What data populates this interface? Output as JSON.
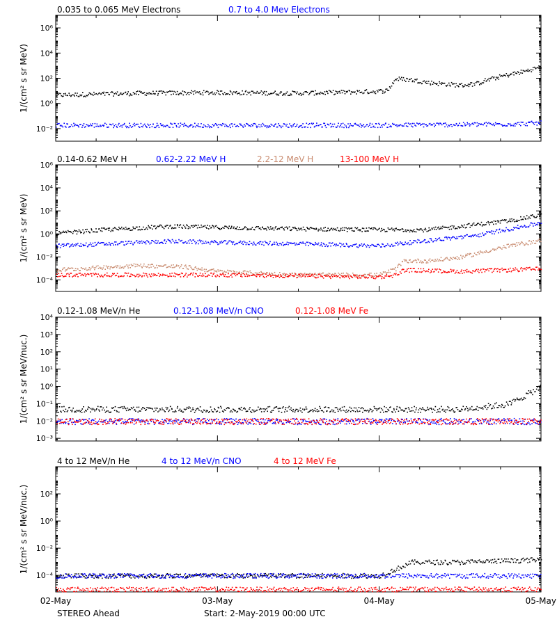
{
  "colors": {
    "black": "#000000",
    "blue": "#0000ff",
    "tan": "#c88a6e",
    "red": "#ff0000"
  },
  "footer": {
    "spacecraft": "STEREO Ahead",
    "start": "Start:  2-May-2019 00:00 UTC"
  },
  "x_axis": {
    "tick_labels": [
      "02-May",
      "03-May",
      "04-May",
      "05-May"
    ],
    "range_days": [
      0,
      3
    ]
  },
  "chart_data": [
    {
      "type": "scatter",
      "ylabel": "1/(cm² s sr MeV)",
      "ylim": [
        0.001,
        10000000
      ],
      "yscale": "log",
      "ytick_labels": [
        "10⁻²",
        "10⁰",
        "10²",
        "10⁴",
        "10⁶"
      ],
      "legend": [
        "0.035 to 0.065 MeV Electrons",
        "0.7 to 4.0 Mev Electrons"
      ],
      "series": [
        {
          "name": "0.035 to 0.065 MeV Electrons",
          "color": "#000000",
          "x_day": [
            0,
            0.5,
            1.0,
            1.5,
            2.0,
            2.05,
            2.1,
            2.2,
            2.3,
            2.5,
            2.6,
            2.65,
            2.75,
            2.9,
            3.0
          ],
          "y": [
            5,
            7,
            8,
            7,
            10,
            12,
            100,
            80,
            50,
            30,
            40,
            70,
            150,
            400,
            900
          ]
        },
        {
          "name": "0.7 to 4.0 Mev Electrons",
          "color": "#0000ff",
          "x_day": [
            0,
            1.0,
            2.0,
            2.8,
            3.0
          ],
          "y": [
            0.02,
            0.02,
            0.02,
            0.025,
            0.03
          ]
        }
      ]
    },
    {
      "type": "scatter",
      "ylabel": "1/(cm² s sr MeV)",
      "ylim": [
        1e-05,
        1000000
      ],
      "yscale": "log",
      "ytick_labels": [
        "10⁻⁴",
        "10⁻²",
        "10⁰",
        "10²",
        "10⁴",
        "10⁶"
      ],
      "legend": [
        "0.14-0.62 MeV H",
        "0.62-2.22 MeV H",
        "2.2-12 MeV H",
        "13-100 MeV H"
      ],
      "series": [
        {
          "name": "0.14-0.62 MeV H",
          "color": "#000000",
          "x_day": [
            0,
            0.3,
            0.7,
            1.0,
            1.5,
            2.0,
            2.3,
            2.5,
            2.8,
            3.0
          ],
          "y": [
            1.2,
            2.5,
            5,
            4,
            3,
            2.5,
            2.5,
            5,
            15,
            50
          ]
        },
        {
          "name": "0.62-2.22 MeV H",
          "color": "#0000ff",
          "x_day": [
            0,
            0.7,
            1.0,
            1.5,
            2.0,
            2.3,
            2.6,
            2.8,
            3.0
          ],
          "y": [
            0.1,
            0.25,
            0.2,
            0.15,
            0.1,
            0.3,
            0.8,
            3,
            10
          ]
        },
        {
          "name": "2.2-12 MeV H",
          "color": "#c88a6e",
          "x_day": [
            0,
            0.5,
            0.8,
            1.0,
            1.5,
            2.0,
            2.1,
            2.15,
            2.3,
            2.5,
            2.8,
            3.0
          ],
          "y": [
            0.0008,
            0.002,
            0.0015,
            0.0006,
            0.0003,
            0.0003,
            0.001,
            0.005,
            0.005,
            0.01,
            0.1,
            0.3
          ]
        },
        {
          "name": "13-100 MeV H",
          "color": "#ff0000",
          "x_day": [
            0,
            1.0,
            2.0,
            2.1,
            2.15,
            2.5,
            3.0
          ],
          "y": [
            0.0003,
            0.0003,
            0.0002,
            0.0003,
            0.0008,
            0.0006,
            0.001
          ]
        }
      ]
    },
    {
      "type": "scatter",
      "ylabel": "1/(cm² s sr MeV/nuc.)",
      "ylim": [
        0.0007,
        10000
      ],
      "yscale": "log",
      "ytick_labels": [
        "10⁻³",
        "10⁻²",
        "10⁻¹",
        "10⁰",
        "10¹",
        "10²",
        "10³",
        "10⁴"
      ],
      "legend": [
        "0.12-1.08 MeV/n He",
        "0.12-1.08 MeV/n CNO",
        "0.12-1.08 MeV Fe"
      ],
      "series": [
        {
          "name": "0.12-1.08 MeV/n He",
          "color": "#000000",
          "x_day": [
            0,
            1.0,
            2.0,
            2.5,
            2.8,
            3.0
          ],
          "y": [
            0.05,
            0.05,
            0.05,
            0.05,
            0.1,
            1.0
          ]
        },
        {
          "name": "0.12-1.08 MeV/n CNO",
          "color": "#0000ff",
          "x_day": [
            0,
            1.5,
            3.0
          ],
          "y": [
            0.01,
            0.01,
            0.01
          ]
        },
        {
          "name": "0.12-1.08 MeV Fe",
          "color": "#ff0000",
          "x_day": [
            0,
            1.5,
            3.0
          ],
          "y": [
            0.01,
            0.01,
            0.01
          ]
        }
      ]
    },
    {
      "type": "scatter",
      "ylabel": "1/(cm² s sr MeV/nuc.)",
      "ylim": [
        6e-06,
        10000
      ],
      "yscale": "log",
      "ytick_labels": [
        "10⁻⁴",
        "10⁻²",
        "10⁰",
        "10²"
      ],
      "legend": [
        "4 to 12 MeV/n He",
        "4 to 12 MeV/n CNO",
        "4 to 12 MeV Fe"
      ],
      "series": [
        {
          "name": "4 to 12 MeV/n He",
          "color": "#000000",
          "x_day": [
            0,
            1.0,
            2.0,
            2.1,
            2.2,
            2.5,
            3.0
          ],
          "y": [
            0.0001,
            0.0001,
            0.0001,
            0.0003,
            0.001,
            0.001,
            0.0015
          ]
        },
        {
          "name": "4 to 12 MeV/n CNO",
          "color": "#0000ff",
          "x_day": [
            0,
            1.5,
            3.0
          ],
          "y": [
            0.0001,
            0.0001,
            0.0001
          ]
        },
        {
          "name": "4 to 12 MeV Fe",
          "color": "#ff0000",
          "x_day": [
            0,
            3.0
          ],
          "y": [
            1e-05,
            1e-05
          ]
        }
      ]
    }
  ]
}
